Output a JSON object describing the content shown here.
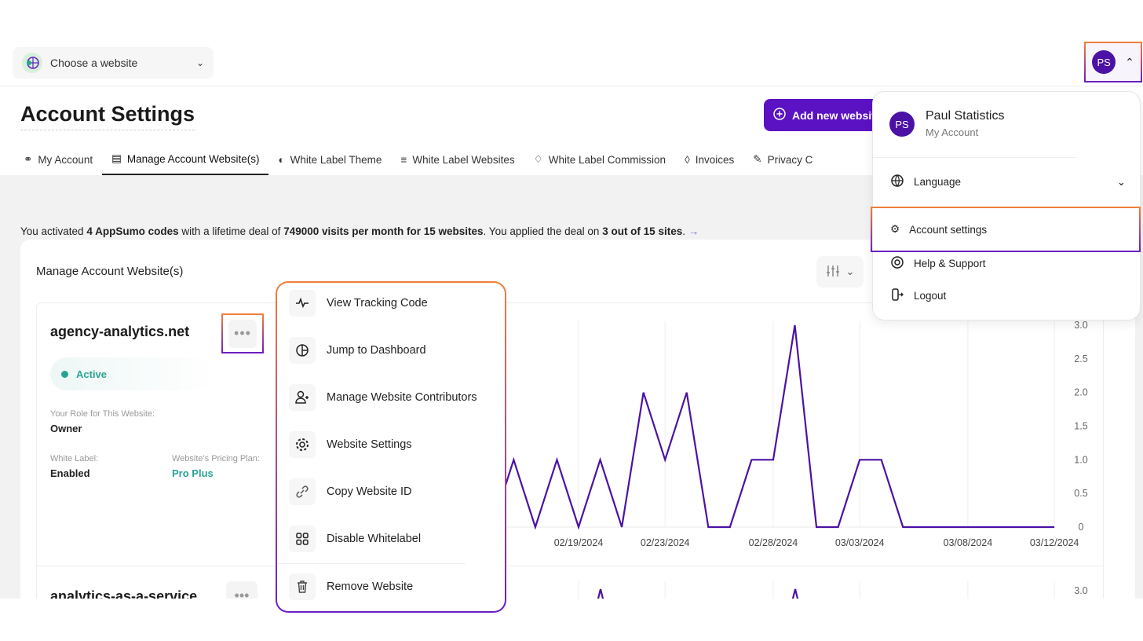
{
  "header": {
    "website_chooser": "Choose a website",
    "avatar_initials": "PS"
  },
  "page": {
    "title": "Account Settings",
    "add_button": "Add new website"
  },
  "tabs": [
    {
      "label": "My Account",
      "icon": "user-icon"
    },
    {
      "label": "Manage Account Website(s)",
      "icon": "stack-icon",
      "active": true
    },
    {
      "label": "White Label Theme",
      "icon": "contrast-icon"
    },
    {
      "label": "White Label Websites",
      "icon": "list-icon"
    },
    {
      "label": "White Label Commission",
      "icon": "tag-icon"
    },
    {
      "label": "Invoices",
      "icon": "layers-icon"
    },
    {
      "label": "Privacy C",
      "icon": "pencil-icon"
    }
  ],
  "info": {
    "p1": "You activated ",
    "b1": "4 AppSumo codes",
    "p2": " with a lifetime deal of ",
    "b2": "749000 visits per month for 15 websites",
    "p3": ". You applied the deal on ",
    "b3": "3 out of 15 sites",
    "p4": ". ",
    "arrow": "→"
  },
  "card": {
    "title": "Manage Account Website(s)"
  },
  "sites": [
    {
      "name": "agency-analytics.net",
      "status": "Active",
      "role_label": "Your Role for This Website:",
      "role": "Owner",
      "wl_label": "White Label:",
      "wl": "Enabled",
      "plan_label": "Website's Pricing Plan:",
      "plan": "Pro Plus"
    },
    {
      "name": "analytics-as-a-service"
    }
  ],
  "site_menu": [
    {
      "label": "View Tracking Code",
      "icon": "pulse-icon"
    },
    {
      "label": "Jump to Dashboard",
      "icon": "pie-chart-icon"
    },
    {
      "label": "Manage Website Contributors",
      "icon": "user-plus-icon"
    },
    {
      "label": "Website Settings",
      "icon": "gear-icon"
    },
    {
      "label": "Copy Website ID",
      "icon": "link-icon"
    },
    {
      "label": "Disable Whitelabel",
      "icon": "grid-icon"
    },
    {
      "label": "Remove Website",
      "icon": "trash-icon"
    }
  ],
  "user_menu": {
    "name": "Paul Statistics",
    "sub": "My Account",
    "initials": "PS",
    "items": [
      {
        "label": "Language",
        "icon": "globe-icon"
      },
      {
        "label": "Account settings",
        "icon": "gear-icon"
      },
      {
        "label": "Help & Support",
        "icon": "lifebuoy-icon"
      },
      {
        "label": "Logout",
        "icon": "logout-icon"
      }
    ]
  },
  "colors": {
    "accent": "#5b12c2",
    "line": "#4b12a5",
    "active": "#2aa394",
    "highlight_from": "#f0803c",
    "highlight_to": "#6a1fc2"
  },
  "chart_data": {
    "type": "line",
    "x": [
      "02/15/2024",
      "02/16/2024",
      "02/17/2024",
      "02/18/2024",
      "02/19/2024",
      "02/20/2024",
      "02/21/2024",
      "02/22/2024",
      "02/23/2024",
      "02/24/2024",
      "02/25/2024",
      "02/26/2024",
      "02/27/2024",
      "02/28/2024",
      "02/29/2024",
      "03/01/2024",
      "03/02/2024",
      "03/03/2024",
      "03/04/2024",
      "03/05/2024",
      "03/06/2024",
      "03/07/2024",
      "03/08/2024",
      "03/09/2024",
      "03/10/2024",
      "03/11/2024",
      "03/12/2024"
    ],
    "values": [
      0,
      1,
      0,
      1,
      0,
      1,
      0,
      2,
      1,
      2,
      0,
      0,
      1,
      1,
      3,
      0,
      0,
      1,
      1,
      0,
      0,
      0,
      0,
      0,
      0,
      0,
      0
    ],
    "xticks": [
      "02/19/2024",
      "02/23/2024",
      "02/28/2024",
      "03/03/2024",
      "03/08/2024",
      "03/12/2024"
    ],
    "yticks": [
      "0",
      "0.5",
      "1.0",
      "1.5",
      "2.0",
      "2.5",
      "3.0"
    ],
    "ylim": [
      0,
      3
    ],
    "y_axis_side": "right",
    "grid": "vertical"
  }
}
